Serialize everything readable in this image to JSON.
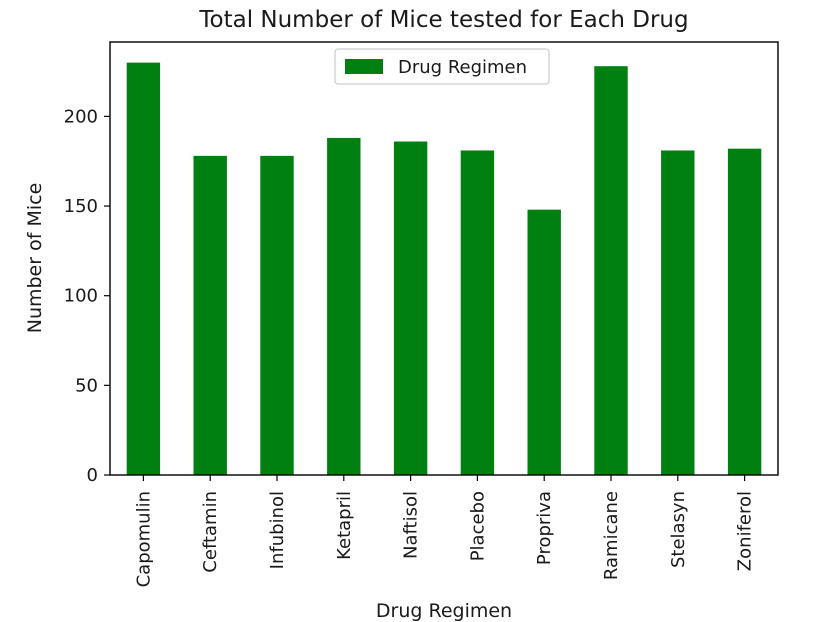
{
  "chart_data": {
    "type": "bar",
    "title": "Total Number of Mice tested for Each Drug",
    "xlabel": "Drug Regimen",
    "ylabel": "Number of Mice",
    "categories": [
      "Capomulin",
      "Ceftamin",
      "Infubinol",
      "Ketapril",
      "Naftisol",
      "Placebo",
      "Propriva",
      "Ramicane",
      "Stelasyn",
      "Zoniferol"
    ],
    "series": [
      {
        "name": "Drug Regimen",
        "values": [
          230,
          178,
          178,
          188,
          186,
          181,
          148,
          228,
          181,
          182
        ],
        "color": "#008011"
      }
    ],
    "ylim": [
      0,
      241.5
    ],
    "yticks": [
      0,
      50,
      100,
      150,
      200
    ],
    "grid": false,
    "legend_position": "top-center"
  }
}
